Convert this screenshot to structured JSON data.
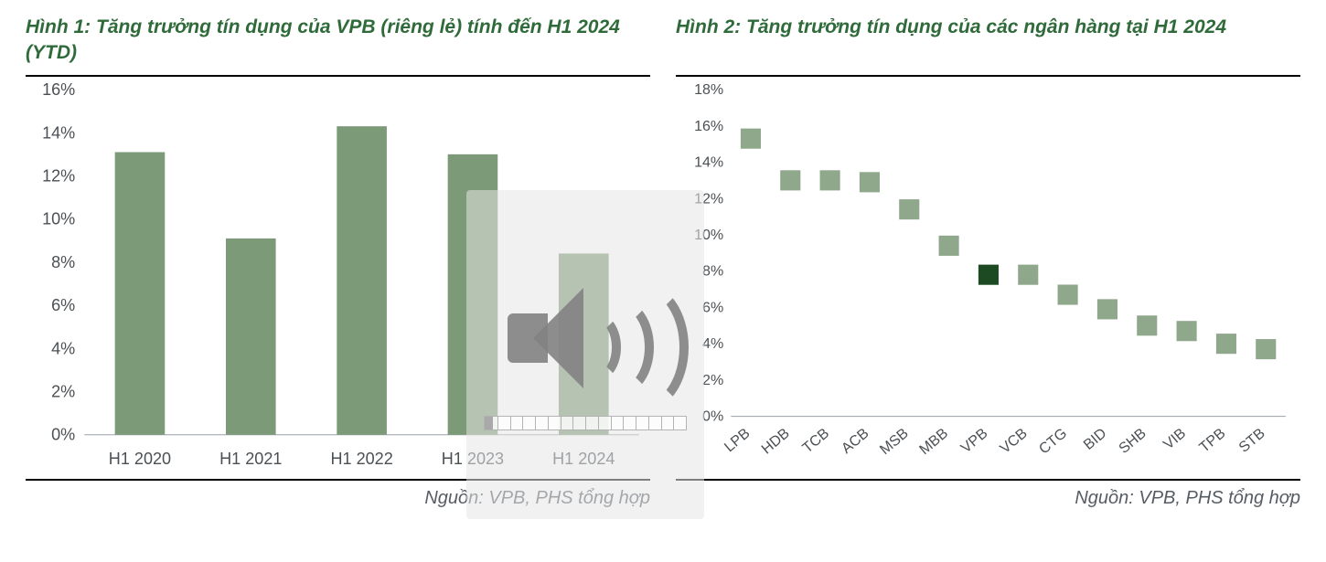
{
  "chart1": {
    "type": "bar",
    "title": "Hình 1: Tăng trưởng tín dụng của VPB (riêng lẻ) tính đến H1 2024 (YTD)",
    "categories": [
      "H1 2020",
      "H1 2021",
      "H1 2022",
      "H1 2023",
      "H1 2024"
    ],
    "values": [
      13.1,
      9.1,
      14.3,
      13.0,
      8.4
    ],
    "bar_color": "#7c9a77",
    "title_color": "#2f6b3a",
    "title_fontsize": 21,
    "title_style": "bold italic",
    "axis_text_color": "#4b5054",
    "axis_fontsize": 18,
    "baseline_color": "#9aa0a6",
    "ylim": [
      0,
      16
    ],
    "ytick_step": 2,
    "ytick_format": "{n}%",
    "bar_width_ratio": 0.45,
    "background_color": "#ffffff",
    "source": "Nguồn: VPB, PHS tổng hợp",
    "frame_border_color": "#000000",
    "frame_border_width": 2
  },
  "chart2": {
    "type": "scatter",
    "title": "Hình 2: Tăng trưởng tín dụng của các ngân hàng tại H1 2024",
    "categories": [
      "LPB",
      "HDB",
      "TCB",
      "ACB",
      "MSB",
      "MBB",
      "VPB",
      "VCB",
      "CTG",
      "BID",
      "SHB",
      "VIB",
      "TPB",
      "STB"
    ],
    "values": [
      15.3,
      13.0,
      13.0,
      12.9,
      11.4,
      9.4,
      7.8,
      7.8,
      6.7,
      5.9,
      5.0,
      4.7,
      4.0,
      3.7
    ],
    "marker_color": "#8fa88b",
    "highlight_category": "VPB",
    "highlight_color": "#1e4a23",
    "marker_size": 22,
    "marker_shape": "square",
    "title_color": "#2f6b3a",
    "title_fontsize": 21,
    "title_style": "bold italic",
    "axis_text_color": "#4b5054",
    "axis_fontsize": 16,
    "baseline_color": "#9aa0a6",
    "ylim": [
      0,
      18
    ],
    "ytick_step": 2,
    "ytick_format": "{n}%",
    "xlabel_rotation_deg": -40,
    "background_color": "#ffffff",
    "source": "Nguồn: VPB, PHS tổng hợp",
    "frame_border_color": "#000000",
    "frame_border_width": 2
  },
  "overlay": {
    "type": "volume-osd",
    "decorative": true,
    "icon": "speaker-waves",
    "fill_ratio": 0.04,
    "tick_count": 16,
    "bg_color": "rgba(230,230,230,0.55)",
    "icon_color": "rgba(130,130,130,0.9)"
  }
}
